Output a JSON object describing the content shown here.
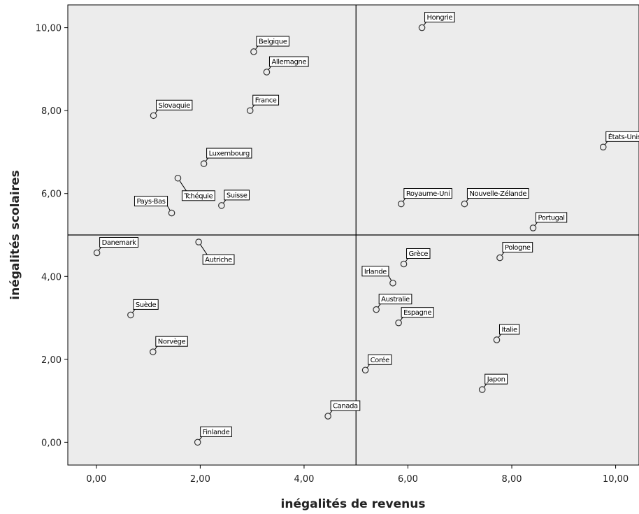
{
  "chart_data": {
    "type": "scatter",
    "xlabel": "inégalités de revenus",
    "ylabel": "inégalités scolaires",
    "xlim": [
      -0.55,
      10.45
    ],
    "ylim": [
      -0.55,
      10.55
    ],
    "xticks": [
      "0,00",
      "2,00",
      "4,00",
      "6,00",
      "8,00",
      "10,00"
    ],
    "yticks": [
      "0,00",
      "2,00",
      "4,00",
      "6,00",
      "8,00",
      "10,00"
    ],
    "xtick_values": [
      0,
      2,
      4,
      6,
      8,
      10
    ],
    "ytick_values": [
      0,
      2,
      4,
      6,
      8,
      10
    ],
    "reference_lines": {
      "x": 5.0,
      "y": 5.0
    },
    "grid": false,
    "plot_background": "#ececec",
    "marker_color": "#333333",
    "points": [
      {
        "label": "Hongrie",
        "x": 6.27,
        "y": 10.0,
        "label_pos": "upper-right"
      },
      {
        "label": "Belgique",
        "x": 3.03,
        "y": 9.42,
        "label_pos": "upper-right"
      },
      {
        "label": "Allemagne",
        "x": 3.28,
        "y": 8.93,
        "label_pos": "upper-right"
      },
      {
        "label": "France",
        "x": 2.96,
        "y": 8.0,
        "label_pos": "upper-right"
      },
      {
        "label": "Slovaquie",
        "x": 1.1,
        "y": 7.88,
        "label_pos": "upper-right"
      },
      {
        "label": "États-Unis",
        "x": 9.76,
        "y": 7.12,
        "label_pos": "upper-right"
      },
      {
        "label": "Luxembourg",
        "x": 2.07,
        "y": 6.72,
        "label_pos": "upper-right"
      },
      {
        "label": "Tchéquie",
        "x": 1.57,
        "y": 6.37,
        "label_pos": "lower-right"
      },
      {
        "label": "Suisse",
        "x": 2.41,
        "y": 5.71,
        "label_pos": "upper-right"
      },
      {
        "label": "Royaume-Uni",
        "x": 5.87,
        "y": 5.75,
        "label_pos": "upper-right"
      },
      {
        "label": "Nouvelle-Zélande",
        "x": 7.09,
        "y": 5.75,
        "label_pos": "upper-right"
      },
      {
        "label": "Pays-Bas",
        "x": 1.45,
        "y": 5.53,
        "label_pos": "upper-left"
      },
      {
        "label": "Portugal",
        "x": 8.41,
        "y": 5.17,
        "label_pos": "upper-right"
      },
      {
        "label": "Danemark",
        "x": 0.01,
        "y": 4.57,
        "label_pos": "upper-right"
      },
      {
        "label": "Autriche",
        "x": 1.97,
        "y": 4.83,
        "label_pos": "lower-right"
      },
      {
        "label": "Pologne",
        "x": 7.77,
        "y": 4.45,
        "label_pos": "upper-right"
      },
      {
        "label": "Grèce",
        "x": 5.92,
        "y": 4.3,
        "label_pos": "upper-right"
      },
      {
        "label": "Irlande",
        "x": 5.71,
        "y": 3.84,
        "label_pos": "upper-left"
      },
      {
        "label": "Australie",
        "x": 5.39,
        "y": 3.2,
        "label_pos": "upper-right"
      },
      {
        "label": "Suède",
        "x": 0.66,
        "y": 3.07,
        "label_pos": "upper-right"
      },
      {
        "label": "Espagne",
        "x": 5.82,
        "y": 2.88,
        "label_pos": "upper-right"
      },
      {
        "label": "Italie",
        "x": 7.71,
        "y": 2.47,
        "label_pos": "upper-right"
      },
      {
        "label": "Norvège",
        "x": 1.09,
        "y": 2.18,
        "label_pos": "upper-right"
      },
      {
        "label": "Corée",
        "x": 5.18,
        "y": 1.74,
        "label_pos": "upper-right"
      },
      {
        "label": "Japon",
        "x": 7.43,
        "y": 1.27,
        "label_pos": "upper-right"
      },
      {
        "label": "Canada",
        "x": 4.46,
        "y": 0.63,
        "label_pos": "upper-right"
      },
      {
        "label": "Finlande",
        "x": 1.95,
        "y": 0.0,
        "label_pos": "upper-right"
      }
    ]
  }
}
